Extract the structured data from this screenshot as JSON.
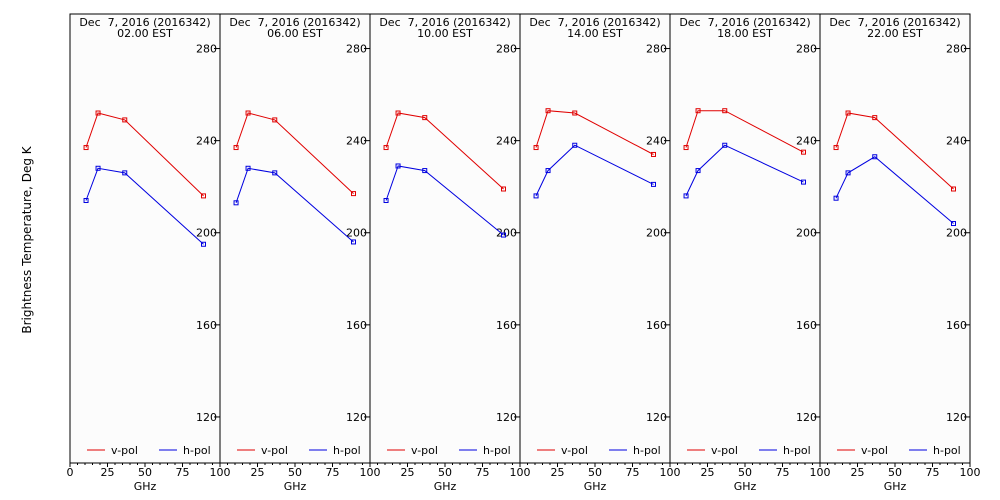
{
  "figure": {
    "ylabel": "Brightness Temperature, Deg K",
    "legend": {
      "v_label": "v-pol",
      "h_label": "h-pol"
    }
  },
  "chart_data": [
    {
      "type": "line",
      "title": "Dec  7, 2016 (2016342)",
      "subtitle": "02.00 EST",
      "xlabel": "GHz",
      "ylabel": "Brightness Temperature, Deg K",
      "xlim": [
        0,
        100
      ],
      "ylim": [
        100,
        295
      ],
      "xticks": [
        "0",
        "25",
        "50",
        "75",
        "100"
      ],
      "yticks": [
        "120",
        "160",
        "200",
        "240",
        "280"
      ],
      "legend_position": "bottom",
      "x": [
        10.7,
        18.7,
        36.5,
        89.0
      ],
      "series": [
        {
          "name": "v-pol",
          "color": "#e00000",
          "values": [
            237,
            252,
            249,
            216
          ]
        },
        {
          "name": "h-pol",
          "color": "#0000e0",
          "values": [
            214,
            228,
            226,
            195
          ]
        }
      ]
    },
    {
      "type": "line",
      "title": "Dec  7, 2016 (2016342)",
      "subtitle": "06.00 EST",
      "xlabel": "GHz",
      "ylabel": "Brightness Temperature, Deg K",
      "xlim": [
        0,
        100
      ],
      "ylim": [
        100,
        295
      ],
      "xticks": [
        "0",
        "25",
        "50",
        "75",
        "100"
      ],
      "yticks": [
        "120",
        "160",
        "200",
        "240",
        "280"
      ],
      "legend_position": "bottom",
      "x": [
        10.7,
        18.7,
        36.5,
        89.0
      ],
      "series": [
        {
          "name": "v-pol",
          "color": "#e00000",
          "values": [
            237,
            252,
            249,
            217
          ]
        },
        {
          "name": "h-pol",
          "color": "#0000e0",
          "values": [
            213,
            228,
            226,
            196
          ]
        }
      ]
    },
    {
      "type": "line",
      "title": "Dec  7, 2016 (2016342)",
      "subtitle": "10.00 EST",
      "xlabel": "GHz",
      "ylabel": "Brightness Temperature, Deg K",
      "xlim": [
        0,
        100
      ],
      "ylim": [
        100,
        295
      ],
      "xticks": [
        "0",
        "25",
        "50",
        "75",
        "100"
      ],
      "yticks": [
        "120",
        "160",
        "200",
        "240",
        "280"
      ],
      "legend_position": "bottom",
      "x": [
        10.7,
        18.7,
        36.5,
        89.0
      ],
      "series": [
        {
          "name": "v-pol",
          "color": "#e00000",
          "values": [
            237,
            252,
            250,
            219
          ]
        },
        {
          "name": "h-pol",
          "color": "#0000e0",
          "values": [
            214,
            229,
            227,
            199
          ]
        }
      ]
    },
    {
      "type": "line",
      "title": "Dec  7, 2016 (2016342)",
      "subtitle": "14.00 EST",
      "xlabel": "GHz",
      "ylabel": "Brightness Temperature, Deg K",
      "xlim": [
        0,
        100
      ],
      "ylim": [
        100,
        295
      ],
      "xticks": [
        "0",
        "25",
        "50",
        "75",
        "100"
      ],
      "yticks": [
        "120",
        "160",
        "200",
        "240",
        "280"
      ],
      "legend_position": "bottom",
      "x": [
        10.7,
        18.7,
        36.5,
        89.0
      ],
      "series": [
        {
          "name": "v-pol",
          "color": "#e00000",
          "values": [
            237,
            253,
            252,
            234
          ]
        },
        {
          "name": "h-pol",
          "color": "#0000e0",
          "values": [
            216,
            227,
            238,
            221
          ]
        }
      ]
    },
    {
      "type": "line",
      "title": "Dec  7, 2016 (2016342)",
      "subtitle": "18.00 EST",
      "xlabel": "GHz",
      "ylabel": "Brightness Temperature, Deg K",
      "xlim": [
        0,
        100
      ],
      "ylim": [
        100,
        295
      ],
      "xticks": [
        "0",
        "25",
        "50",
        "75",
        "100"
      ],
      "yticks": [
        "120",
        "160",
        "200",
        "240",
        "280"
      ],
      "legend_position": "bottom",
      "x": [
        10.7,
        18.7,
        36.5,
        89.0
      ],
      "series": [
        {
          "name": "v-pol",
          "color": "#e00000",
          "values": [
            237,
            253,
            253,
            235
          ]
        },
        {
          "name": "h-pol",
          "color": "#0000e0",
          "values": [
            216,
            227,
            238,
            222
          ]
        }
      ]
    },
    {
      "type": "line",
      "title": "Dec  7, 2016 (2016342)",
      "subtitle": "22.00 EST",
      "xlabel": "GHz",
      "ylabel": "Brightness Temperature, Deg K",
      "xlim": [
        0,
        100
      ],
      "ylim": [
        100,
        295
      ],
      "xticks": [
        "0",
        "25",
        "50",
        "75",
        "100"
      ],
      "yticks": [
        "120",
        "160",
        "200",
        "240",
        "280"
      ],
      "legend_position": "bottom",
      "x": [
        10.7,
        18.7,
        36.5,
        89.0
      ],
      "series": [
        {
          "name": "v-pol",
          "color": "#e00000",
          "values": [
            237,
            252,
            250,
            219
          ]
        },
        {
          "name": "h-pol",
          "color": "#0000e0",
          "values": [
            215,
            226,
            233,
            204
          ]
        }
      ]
    }
  ]
}
